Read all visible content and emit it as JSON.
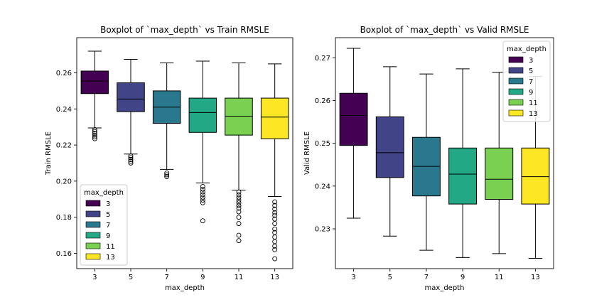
{
  "colors": {
    "3": "#440154",
    "5": "#414487",
    "7": "#2a788e",
    "9": "#22a884",
    "11": "#7ad151",
    "13": "#fde725"
  },
  "chart_data": [
    {
      "type": "boxplot",
      "title": "Boxplot of `max_depth` vs Train RMSLE",
      "xlabel": "max_depth",
      "ylabel": "Train RMSLE",
      "ylim": [
        0.1515,
        0.2795
      ],
      "yticks": [
        "0.16",
        "0.18",
        "0.20",
        "0.22",
        "0.24",
        "0.26"
      ],
      "ytick_values": [
        0.16,
        0.18,
        0.2,
        0.22,
        0.24,
        0.26
      ],
      "categories": [
        "3",
        "5",
        "7",
        "9",
        "11",
        "13"
      ],
      "boxes": [
        {
          "whislo": 0.2295,
          "q1": 0.2485,
          "med": 0.2555,
          "q3": 0.261,
          "whishi": 0.272,
          "fliers": [
            0.2255,
            0.2265,
            0.2275,
            0.2285,
            0.2245,
            0.2235
          ]
        },
        {
          "whislo": 0.215,
          "q1": 0.2385,
          "med": 0.2455,
          "q3": 0.2545,
          "whishi": 0.2675,
          "fliers": [
            0.214,
            0.213,
            0.212,
            0.211,
            0.21
          ]
        },
        {
          "whislo": 0.2065,
          "q1": 0.232,
          "med": 0.241,
          "q3": 0.25,
          "whishi": 0.2655,
          "fliers": [
            0.2045,
            0.2035,
            0.2025
          ]
        },
        {
          "whislo": 0.199,
          "q1": 0.227,
          "med": 0.238,
          "q3": 0.246,
          "whishi": 0.2665,
          "fliers": [
            0.197,
            0.1955,
            0.194,
            0.1925,
            0.191,
            0.1895,
            0.188,
            0.178
          ]
        },
        {
          "whislo": 0.195,
          "q1": 0.2255,
          "med": 0.236,
          "q3": 0.246,
          "whishi": 0.2655,
          "fliers": [
            0.194,
            0.1925,
            0.191,
            0.1895,
            0.188,
            0.1865,
            0.185,
            0.183,
            0.18,
            0.1765,
            0.17,
            0.167
          ]
        },
        {
          "whislo": 0.1915,
          "q1": 0.2235,
          "med": 0.2355,
          "q3": 0.246,
          "whishi": 0.265,
          "fliers": [
            0.1885,
            0.1865,
            0.1845,
            0.1825,
            0.181,
            0.179,
            0.1765,
            0.1735,
            0.1715,
            0.169,
            0.1665,
            0.164,
            0.162,
            0.157
          ]
        }
      ],
      "legend": {
        "title": "max_depth",
        "entries": [
          "3",
          "5",
          "7",
          "9",
          "11",
          "13"
        ],
        "placement": "lower-left"
      }
    },
    {
      "type": "boxplot",
      "title": "Boxplot of `max_depth` vs Valid RMSLE",
      "xlabel": "max_depth",
      "ylabel": "Valid RMSLE",
      "ylim": [
        0.2207,
        0.2747
      ],
      "yticks": [
        "0.23",
        "0.24",
        "0.25",
        "0.26",
        "0.27"
      ],
      "ytick_values": [
        0.23,
        0.24,
        0.25,
        0.26,
        0.27
      ],
      "categories": [
        "3",
        "5",
        "7",
        "9",
        "11",
        "13"
      ],
      "boxes": [
        {
          "whislo": 0.2325,
          "q1": 0.2495,
          "med": 0.2565,
          "q3": 0.2617,
          "whishi": 0.2722,
          "fliers": []
        },
        {
          "whislo": 0.2283,
          "q1": 0.242,
          "med": 0.2478,
          "q3": 0.2562,
          "whishi": 0.2679,
          "fliers": []
        },
        {
          "whislo": 0.225,
          "q1": 0.2377,
          "med": 0.2446,
          "q3": 0.2514,
          "whishi": 0.2662,
          "fliers": []
        },
        {
          "whislo": 0.2233,
          "q1": 0.2358,
          "med": 0.2428,
          "q3": 0.2489,
          "whishi": 0.2674,
          "fliers": []
        },
        {
          "whislo": 0.2242,
          "q1": 0.2369,
          "med": 0.2416,
          "q3": 0.2489,
          "whishi": 0.2666,
          "fliers": []
        },
        {
          "whislo": 0.2231,
          "q1": 0.2358,
          "med": 0.2422,
          "q3": 0.2489,
          "whishi": 0.2656,
          "fliers": []
        }
      ],
      "legend": {
        "title": "max_depth",
        "entries": [
          "3",
          "5",
          "7",
          "9",
          "11",
          "13"
        ],
        "placement": "upper-right"
      }
    }
  ]
}
